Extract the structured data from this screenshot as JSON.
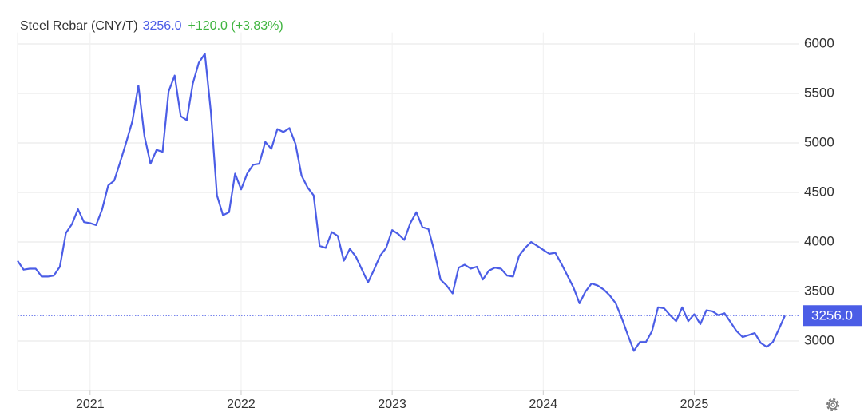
{
  "chart_data": {
    "type": "line",
    "title": "Steel Rebar (CNY/T)",
    "price_label": "3256.0",
    "change_label": "+120.0 (+3.83%)",
    "last_value_label": "3256.0",
    "x": [
      2020.52,
      2020.56,
      2020.6,
      2020.64,
      2020.68,
      2020.72,
      2020.76,
      2020.8,
      2020.84,
      2020.88,
      2020.92,
      2020.96,
      2021.0,
      2021.04,
      2021.08,
      2021.12,
      2021.16,
      2021.2,
      2021.24,
      2021.28,
      2021.32,
      2021.36,
      2021.4,
      2021.44,
      2021.48,
      2021.52,
      2021.56,
      2021.6,
      2021.64,
      2021.68,
      2021.72,
      2021.76,
      2021.8,
      2021.84,
      2021.88,
      2021.92,
      2021.96,
      2022.0,
      2022.04,
      2022.08,
      2022.12,
      2022.16,
      2022.2,
      2022.24,
      2022.28,
      2022.32,
      2022.36,
      2022.4,
      2022.44,
      2022.48,
      2022.52,
      2022.56,
      2022.6,
      2022.64,
      2022.68,
      2022.72,
      2022.76,
      2022.8,
      2022.84,
      2022.88,
      2022.92,
      2022.96,
      2023.0,
      2023.04,
      2023.08,
      2023.12,
      2023.16,
      2023.2,
      2023.24,
      2023.28,
      2023.32,
      2023.36,
      2023.4,
      2023.44,
      2023.48,
      2023.52,
      2023.56,
      2023.6,
      2023.64,
      2023.68,
      2023.72,
      2023.76,
      2023.8,
      2023.84,
      2023.88,
      2023.92,
      2023.96,
      2024.0,
      2024.04,
      2024.08,
      2024.12,
      2024.16,
      2024.2,
      2024.24,
      2024.28,
      2024.32,
      2024.36,
      2024.4,
      2024.44,
      2024.48,
      2024.52,
      2024.56,
      2024.6,
      2024.64,
      2024.68,
      2024.72,
      2024.76,
      2024.8,
      2024.84,
      2024.88,
      2024.92,
      2024.96,
      2025.0,
      2025.04,
      2025.08,
      2025.12,
      2025.16,
      2025.2,
      2025.24,
      2025.28,
      2025.32,
      2025.36,
      2025.4,
      2025.44,
      2025.48,
      2025.52,
      2025.56,
      2025.6
    ],
    "series": [
      {
        "color": "#4b5de6",
        "values": [
          3810,
          3720,
          3730,
          3730,
          3650,
          3650,
          3660,
          3750,
          4090,
          4180,
          4330,
          4200,
          4190,
          4170,
          4330,
          4570,
          4620,
          4810,
          5010,
          5220,
          5580,
          5070,
          4790,
          4930,
          4910,
          5520,
          5680,
          5270,
          5230,
          5600,
          5810,
          5900,
          5310,
          4470,
          4270,
          4300,
          4690,
          4530,
          4690,
          4780,
          4790,
          5010,
          4940,
          5140,
          5110,
          5150,
          4990,
          4670,
          4550,
          4470,
          3960,
          3940,
          4100,
          4060,
          3810,
          3930,
          3850,
          3720,
          3590,
          3720,
          3860,
          3940,
          4120,
          4080,
          4020,
          4190,
          4300,
          4150,
          4130,
          3900,
          3620,
          3560,
          3480,
          3740,
          3770,
          3730,
          3750,
          3620,
          3710,
          3740,
          3730,
          3660,
          3650,
          3860,
          3940,
          4000,
          3960,
          3920,
          3880,
          3890,
          3780,
          3660,
          3540,
          3380,
          3500,
          3580,
          3560,
          3520,
          3460,
          3380,
          3230,
          3060,
          2900,
          2990,
          2990,
          3100,
          3340,
          3330,
          3260,
          3200,
          3340,
          3200,
          3270,
          3170,
          3310,
          3300,
          3260,
          3280,
          3190,
          3100,
          3040,
          3060,
          3080,
          2980,
          2940,
          2990,
          3120,
          3256
        ]
      }
    ],
    "xlim": [
      2020.52,
      2025.69
    ],
    "xticks": [
      2021,
      2022,
      2023,
      2024,
      2025
    ],
    "ylim": [
      2500,
      6100
    ],
    "yticks": [
      3000,
      3500,
      4000,
      4500,
      5000,
      5500,
      6000
    ],
    "grid": true
  }
}
